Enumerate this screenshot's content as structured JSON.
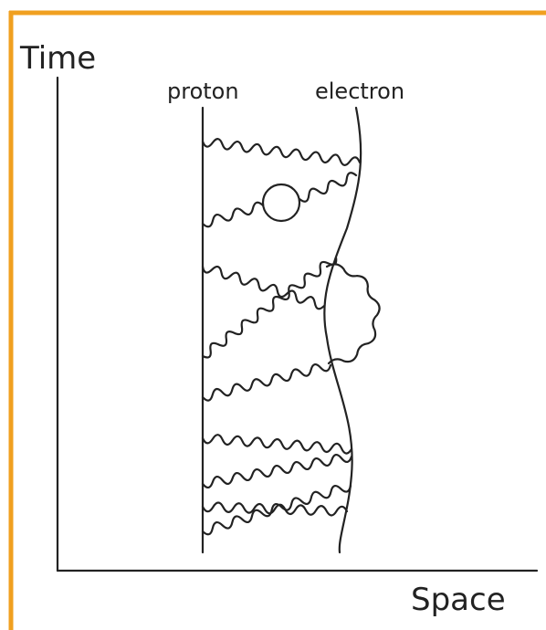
{
  "axes": {
    "y_label": "Time",
    "x_label": "Space"
  },
  "lines": {
    "proton": "proton",
    "electron": "electron"
  }
}
